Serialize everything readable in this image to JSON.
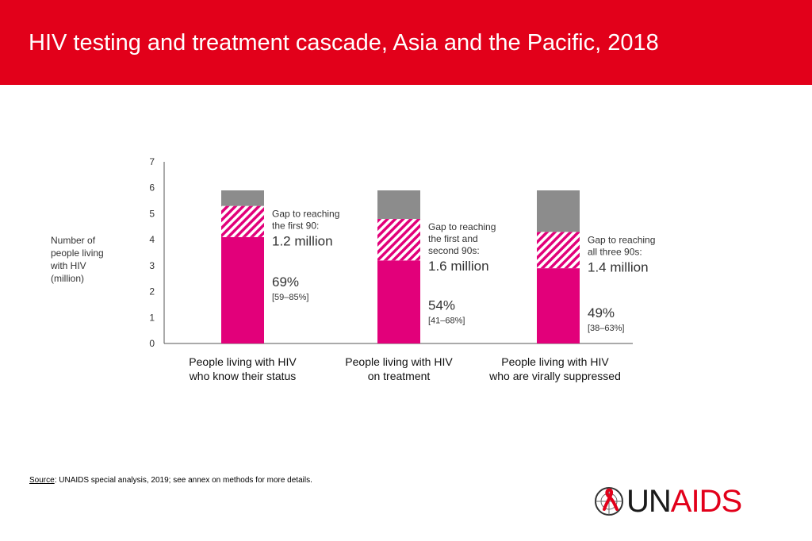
{
  "header": {
    "title": "HIV testing and treatment cascade, Asia and the Pacific, 2018"
  },
  "chart_data": {
    "type": "bar",
    "stacked": true,
    "ylabel": "Number of people living with HIV (million)",
    "ylabel_lines": [
      "Number of",
      "people living",
      "with HIV",
      "(million)"
    ],
    "ylim": [
      0,
      7
    ],
    "yticks": [
      "0",
      "1",
      "2",
      "3",
      "4",
      "5",
      "6",
      "7"
    ],
    "grid": false,
    "categories": [
      [
        "People living with HIV",
        "who know their status"
      ],
      [
        "People living with HIV",
        "on treatment"
      ],
      [
        "People living with HIV",
        "who are virally suppressed"
      ]
    ],
    "bars": [
      {
        "achieved": 4.1,
        "gap": 1.2,
        "remaining": 0.6,
        "percent": "69%",
        "range": "[59–85%]",
        "gap_label_lines": [
          "Gap to reaching",
          "the first 90:"
        ],
        "gap_value": "1.2 million"
      },
      {
        "achieved": 3.2,
        "gap": 1.6,
        "remaining": 1.1,
        "percent": "54%",
        "range": "[41–68%]",
        "gap_label_lines": [
          "Gap to reaching",
          "the first and",
          "second 90s:"
        ],
        "gap_value": "1.6 million"
      },
      {
        "achieved": 2.9,
        "gap": 1.4,
        "remaining": 1.6,
        "percent": "49%",
        "range": "[38–63%]",
        "gap_label_lines": [
          "Gap to reaching",
          "all three 90s:"
        ],
        "gap_value": "1.4 million"
      }
    ],
    "colors": {
      "achieved": "#e2007a",
      "gap_hatch": "#e2007a",
      "remaining": "#8c8c8c",
      "axis": "#555555"
    }
  },
  "source": {
    "label": "Source",
    "text": ": UNAIDS special analysis, 2019; see annex on methods for more details."
  },
  "logo": {
    "un": "UN",
    "aids": "AIDS"
  }
}
